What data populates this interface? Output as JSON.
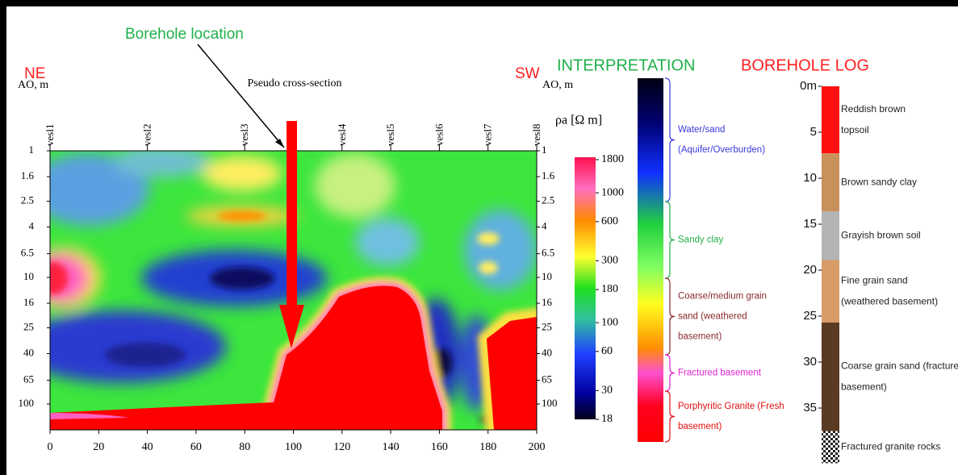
{
  "chart_data": {
    "type": "contour",
    "title": "Pseudo cross-section",
    "left_label": "NE",
    "right_label": "SW",
    "annotation": "Borehole location",
    "ylabel": "AO, m",
    "stations": [
      "vesl1",
      "vesl2",
      "vesl3",
      "vesl4",
      "vesl5",
      "vesl6",
      "vesl7",
      "vesl8"
    ],
    "station_x": [
      0,
      40,
      80,
      120,
      140,
      160,
      180,
      200
    ],
    "xlim": [
      0,
      200
    ],
    "xticks": [
      0,
      20,
      40,
      60,
      80,
      100,
      120,
      140,
      160,
      180,
      200
    ],
    "ylim": [
      1,
      160
    ],
    "yticks": [
      1,
      1.6,
      2.5,
      4,
      6.5,
      10,
      16,
      25,
      40,
      65,
      100
    ],
    "y_log": true,
    "y_inverted": true,
    "colorbar": {
      "label": "ρa [Ω m]",
      "lim": [
        18,
        1800
      ],
      "log": true,
      "ticks": [
        1800,
        1000,
        600,
        300,
        180,
        100,
        60,
        30,
        18
      ]
    }
  },
  "interpretation": {
    "title": "INTERPRETATION",
    "zones": [
      {
        "lines": [
          "Water/sand",
          "(Aquifer/Overburden)"
        ],
        "color": "#3a3adc"
      },
      {
        "lines": [
          "Sandy clay"
        ],
        "color": "#22b04a"
      },
      {
        "lines": [
          "Coarse/medium grain",
          "sand (weathered",
          "basement)"
        ],
        "color": "#8a2a2a"
      },
      {
        "lines": [
          "Fractured basement"
        ],
        "color": "#e020d0"
      },
      {
        "lines": [
          "Porphyritic Granite (Fresh",
          "basement)"
        ],
        "color": "#e01010"
      }
    ]
  },
  "borehole_log": {
    "title": "BOREHOLE LOG",
    "depth_ticks": [
      {
        "value": 0,
        "label": "0m"
      },
      5,
      10,
      15,
      20,
      25,
      30,
      35
    ],
    "layers": [
      {
        "lines": [
          "Reddish brown",
          "topsoil"
        ],
        "color": "#ff1010",
        "top": 0,
        "bottom": 7.3
      },
      {
        "lines": [
          "Brown sandy clay"
        ],
        "color": "#c8905a",
        "top": 7.3,
        "bottom": 13.6
      },
      {
        "lines": [
          "Grayish brown soil"
        ],
        "color": "#b4b4b4",
        "top": 13.6,
        "bottom": 18.9
      },
      {
        "lines": [
          "Fine grain sand",
          "(weathered basement)"
        ],
        "color": "#d89c68",
        "top": 18.9,
        "bottom": 25.7
      },
      {
        "lines": [
          "Coarse grain sand (fractured",
          "basement)"
        ],
        "color": "#5a3a22",
        "top": 25.7,
        "bottom": 37.5
      },
      {
        "lines": [
          "Fractured granite rocks"
        ],
        "color": "#444444",
        "top": 37.5,
        "bottom": 41
      }
    ]
  }
}
